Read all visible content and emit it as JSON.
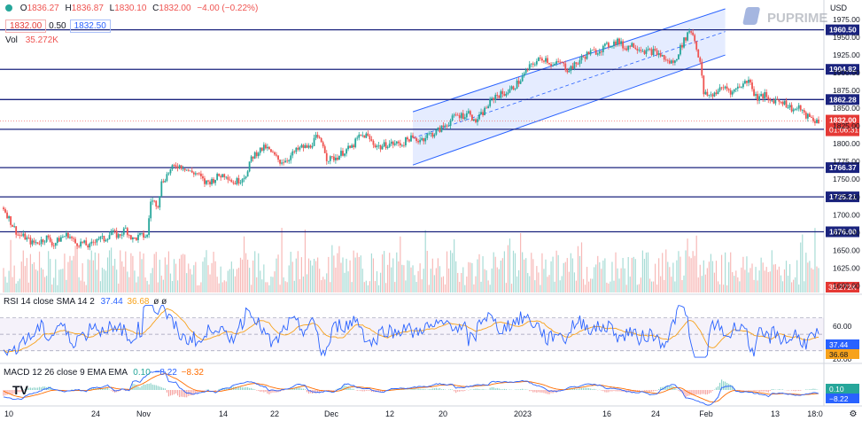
{
  "ohlc": {
    "open_label": "O",
    "open": "1836.27",
    "high_label": "H",
    "high": "1836.87",
    "low_label": "L",
    "low": "1830.10",
    "close_label": "C",
    "close": "1832.00",
    "change": "−4.00 (−0.22%)"
  },
  "quote": {
    "bid": "1832.00",
    "spread": "0.50",
    "ask": "1832.50"
  },
  "volume_header": {
    "label": "Vol",
    "value": "35.272K"
  },
  "currency": "USD",
  "brand": "PUPRIME",
  "countdown": "01:06:31",
  "colors": {
    "up": "#26a69a",
    "down": "#ef5350",
    "level": "#1a237e",
    "channel": "#2962ff",
    "rsi": "#2962ff",
    "rsi_ma": "#f7a21b",
    "macd": "#2962ff",
    "signal": "#ff6d00"
  },
  "chart_data": [
    {
      "type": "candlestick",
      "title": "",
      "ylim": [
        1578,
        1990
      ],
      "y_ticks": [
        1600,
        1625,
        1650,
        1675,
        1700,
        1725,
        1750,
        1775,
        1800,
        1825,
        1850,
        1875,
        1900,
        1925,
        1950,
        1975
      ],
      "x_tick_labels": [
        "10",
        "24",
        "Nov",
        "14",
        "22",
        "Dec",
        "12",
        "20",
        "2023",
        "16",
        "24",
        "Feb",
        "13",
        "18:0"
      ],
      "close_path": [
        [
          0,
          1710
        ],
        [
          4,
          1690
        ],
        [
          8,
          1672
        ],
        [
          12,
          1668
        ],
        [
          16,
          1660
        ],
        [
          20,
          1662
        ],
        [
          24,
          1668
        ],
        [
          28,
          1658
        ],
        [
          32,
          1668
        ],
        [
          36,
          1672
        ],
        [
          40,
          1660
        ],
        [
          44,
          1660
        ],
        [
          48,
          1655
        ],
        [
          52,
          1668
        ],
        [
          56,
          1665
        ],
        [
          60,
          1675
        ],
        [
          64,
          1670
        ],
        [
          68,
          1680
        ],
        [
          72,
          1665
        ],
        [
          76,
          1670
        ],
        [
          80,
          1670
        ],
        [
          82,
          1720
        ],
        [
          86,
          1715
        ],
        [
          88,
          1745
        ],
        [
          92,
          1760
        ],
        [
          96,
          1770
        ],
        [
          100,
          1768
        ],
        [
          104,
          1760
        ],
        [
          108,
          1758
        ],
        [
          112,
          1745
        ],
        [
          116,
          1748
        ],
        [
          120,
          1755
        ],
        [
          124,
          1757
        ],
        [
          128,
          1745
        ],
        [
          132,
          1750
        ],
        [
          136,
          1760
        ],
        [
          138,
          1780
        ],
        [
          142,
          1790
        ],
        [
          146,
          1795
        ],
        [
          150,
          1785
        ],
        [
          154,
          1775
        ],
        [
          158,
          1778
        ],
        [
          162,
          1788
        ],
        [
          166,
          1795
        ],
        [
          170,
          1795
        ],
        [
          174,
          1808
        ],
        [
          178,
          1800
        ],
        [
          180,
          1780
        ],
        [
          182,
          1778
        ],
        [
          186,
          1782
        ],
        [
          190,
          1790
        ],
        [
          194,
          1795
        ],
        [
          198,
          1810
        ],
        [
          202,
          1812
        ],
        [
          206,
          1800
        ],
        [
          210,
          1795
        ],
        [
          214,
          1800
        ],
        [
          218,
          1800
        ],
        [
          222,
          1800
        ],
        [
          226,
          1808
        ],
        [
          230,
          1805
        ],
        [
          234,
          1808
        ],
        [
          236,
          1812
        ],
        [
          240,
          1815
        ],
        [
          244,
          1822
        ],
        [
          248,
          1830
        ],
        [
          252,
          1840
        ],
        [
          256,
          1840
        ],
        [
          260,
          1845
        ],
        [
          262,
          1830
        ],
        [
          266,
          1840
        ],
        [
          270,
          1855
        ],
        [
          274,
          1868
        ],
        [
          278,
          1870
        ],
        [
          282,
          1875
        ],
        [
          284,
          1880
        ],
        [
          288,
          1890
        ],
        [
          292,
          1905
        ],
        [
          296,
          1915
        ],
        [
          300,
          1920
        ],
        [
          302,
          1920
        ],
        [
          306,
          1910
        ],
        [
          310,
          1915
        ],
        [
          314,
          1905
        ],
        [
          318,
          1910
        ],
        [
          322,
          1920
        ],
        [
          326,
          1928
        ],
        [
          330,
          1930
        ],
        [
          334,
          1935
        ],
        [
          338,
          1940
        ],
        [
          342,
          1945
        ],
        [
          346,
          1935
        ],
        [
          350,
          1940
        ],
        [
          354,
          1935
        ],
        [
          358,
          1930
        ],
        [
          362,
          1930
        ],
        [
          366,
          1925
        ],
        [
          370,
          1915
        ],
        [
          374,
          1915
        ],
        [
          376,
          1930
        ],
        [
          380,
          1950
        ],
        [
          382,
          1960
        ],
        [
          384,
          1955
        ],
        [
          388,
          1915
        ],
        [
          390,
          1870
        ],
        [
          394,
          1868
        ],
        [
          398,
          1875
        ],
        [
          402,
          1880
        ],
        [
          406,
          1872
        ],
        [
          408,
          1878
        ],
        [
          412,
          1885
        ],
        [
          416,
          1890
        ],
        [
          418,
          1870
        ],
        [
          420,
          1865
        ],
        [
          424,
          1868
        ],
        [
          426,
          1860
        ],
        [
          430,
          1862
        ],
        [
          434,
          1860
        ],
        [
          436,
          1855
        ],
        [
          440,
          1848
        ],
        [
          444,
          1850
        ],
        [
          446,
          1840
        ],
        [
          450,
          1836
        ],
        [
          452,
          1832
        ]
      ],
      "levels": [
        1960.5,
        1904.82,
        1862.28,
        1820.36,
        1766.37,
        1725.21,
        1676.0
      ],
      "channel": {
        "upper": [
          [
            228,
            1845
          ],
          [
            402,
            1990
          ]
        ],
        "lower": [
          [
            228,
            1770
          ],
          [
            402,
            1925
          ]
        ],
        "mid": [
          [
            228,
            1808
          ],
          [
            402,
            1958
          ]
        ]
      },
      "last_price": 1832.0
    },
    {
      "type": "line",
      "title": "RSI 14 close SMA 14 2",
      "values": {
        "rsi": "37.44",
        "sma": "36.68"
      },
      "ylim": [
        20,
        90
      ],
      "y_ticks": [
        20,
        40,
        60
      ],
      "band": [
        30,
        70
      ]
    },
    {
      "type": "line",
      "title": "MACD 12 26 close 9 EMA EMA",
      "values": {
        "hist": "0.10",
        "macd": "−8.22",
        "signal": "−8.32"
      }
    }
  ],
  "price_labels": {
    "l1960": "1960.50",
    "l1904": "1904.82",
    "l1862": "1862.28",
    "l1820": "1820.36",
    "l1766": "1766.37",
    "l1725": "1725.21",
    "l1676": "1676.00",
    "last": "1832.00",
    "vol": "35.272K",
    "rsi_a": "37.44",
    "rsi_b": "36.68",
    "macd_a": "0.10",
    "macd_b": "−8.22"
  }
}
